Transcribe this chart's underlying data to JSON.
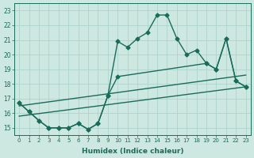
{
  "xlabel": "Humidex (Indice chaleur)",
  "x_values": [
    0,
    1,
    2,
    3,
    4,
    5,
    6,
    7,
    8,
    9,
    10,
    11,
    12,
    13,
    14,
    15,
    16,
    17,
    18,
    19,
    20,
    21,
    22,
    23
  ],
  "line1": [
    16.7,
    16.1,
    15.5,
    15.0,
    15.0,
    15.0,
    15.3,
    14.9,
    15.3,
    17.2,
    20.9,
    20.5,
    21.1,
    21.5,
    22.7,
    22.7,
    21.1,
    20.0,
    20.3,
    19.4,
    19.0,
    21.1,
    18.2,
    17.8
  ],
  "line2_x": [
    0,
    1,
    2,
    3,
    4,
    5,
    6,
    7,
    8,
    9,
    10,
    19,
    20,
    21,
    22,
    23
  ],
  "line2_y": [
    16.7,
    16.1,
    15.5,
    15.0,
    15.0,
    15.0,
    15.3,
    14.9,
    15.3,
    17.2,
    18.5,
    19.4,
    19.0,
    21.1,
    18.2,
    17.8
  ],
  "trend1_x": [
    0,
    23
  ],
  "trend1_y": [
    16.5,
    18.6
  ],
  "trend2_x": [
    0,
    23
  ],
  "trend2_y": [
    15.8,
    17.8
  ],
  "ylim": [
    14.5,
    23.5
  ],
  "xlim": [
    -0.5,
    23.5
  ],
  "yticks": [
    15,
    16,
    17,
    18,
    19,
    20,
    21,
    22,
    23
  ],
  "xticks": [
    0,
    1,
    2,
    3,
    4,
    5,
    6,
    7,
    8,
    9,
    10,
    11,
    12,
    13,
    14,
    15,
    16,
    17,
    18,
    19,
    20,
    21,
    22,
    23
  ],
  "line_color": "#1a6b5a",
  "bg_color": "#cce8e0",
  "grid_color": "#aacfca",
  "marker": "D",
  "marker_size": 2.5,
  "linewidth": 1.0
}
